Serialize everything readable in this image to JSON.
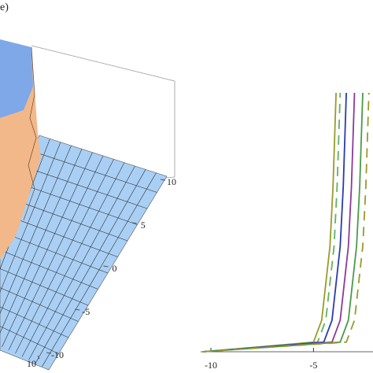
{
  "chart_data": [
    {
      "type": "surface",
      "title": "e)",
      "ylim": [
        -10,
        10
      ],
      "yticks": [
        10,
        5,
        0,
        -5,
        -10
      ],
      "xticks": [
        10
      ]
    },
    {
      "type": "line",
      "xlim": [
        -10.5,
        -2.1
      ],
      "ylim": [
        0,
        10
      ],
      "xticks": [
        -10,
        -5
      ],
      "series": [
        {
          "color": "#9a9a2a",
          "dash": false,
          "x": [
            -10.4,
            -5.0,
            -4.6,
            -4.2,
            -4.05,
            -3.9
          ],
          "values": [
            0,
            0.37,
            1.22,
            4.07,
            6.38,
            10
          ]
        },
        {
          "color": "#5fb35f",
          "dash": true,
          "x": [
            -10.4,
            -4.8,
            -4.4,
            -4.0,
            -3.85,
            -3.7
          ],
          "values": [
            0,
            0.37,
            1.22,
            4.07,
            6.38,
            10
          ]
        },
        {
          "color": "#2a3ab0",
          "dash": false,
          "x": [
            -10.4,
            -4.5,
            -4.1,
            -3.7,
            -3.55,
            -3.4
          ],
          "values": [
            0,
            0.37,
            1.22,
            4.07,
            6.38,
            10
          ]
        },
        {
          "color": "#8a3a9a",
          "dash": false,
          "x": [
            -10.4,
            -4.1,
            -3.7,
            -3.3,
            -3.15,
            -3.0
          ],
          "values": [
            0,
            0.37,
            1.22,
            4.07,
            6.38,
            10
          ]
        },
        {
          "color": "#4a9a4a",
          "dash": false,
          "x": [
            -10.4,
            -3.7,
            -3.3,
            -2.9,
            -2.75,
            -2.6
          ],
          "values": [
            0,
            0.37,
            1.22,
            4.07,
            6.38,
            10
          ]
        },
        {
          "color": "#9a9a2a",
          "dash": true,
          "x": [
            -10.4,
            -3.4,
            -3.0,
            -2.6,
            -2.45,
            -2.3
          ],
          "values": [
            0,
            0.37,
            1.22,
            4.07,
            6.38,
            10
          ]
        }
      ]
    }
  ]
}
